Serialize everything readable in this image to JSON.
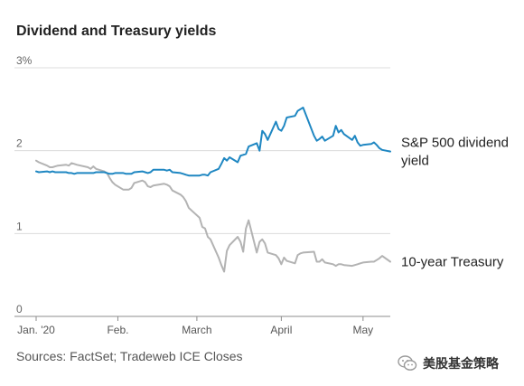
{
  "title": "Dividend and Treasury yields",
  "source": "Sources: FactSet; Tradeweb ICE Closes",
  "watermark": "美股基金策略",
  "chart_data": {
    "type": "line",
    "title": "Dividend and Treasury yields",
    "xlabel": "",
    "ylabel": "",
    "x_tick_labels": [
      "Jan. '20",
      "Feb.",
      "March",
      "April",
      "May"
    ],
    "x_tick_dates": [
      "2020-01-02",
      "2020-02-01",
      "2020-03-01",
      "2020-04-01",
      "2020-05-01"
    ],
    "y_ticks": [
      {
        "value": 0,
        "label": "0"
      },
      {
        "value": 1,
        "label": "1"
      },
      {
        "value": 2,
        "label": "2"
      },
      {
        "value": 3,
        "label": "3%"
      }
    ],
    "ylim": [
      0,
      3
    ],
    "xlim": [
      "2020-01-02",
      "2020-05-11"
    ],
    "grid": "horizontal",
    "series": [
      {
        "name": "S&P 500 dividend yield",
        "color": "#1f87c2",
        "label_lines": [
          "S&P 500 dividend",
          "yield"
        ],
        "points": [
          [
            "2020-01-02",
            1.75
          ],
          [
            "2020-01-03",
            1.74
          ],
          [
            "2020-01-06",
            1.75
          ],
          [
            "2020-01-07",
            1.74
          ],
          [
            "2020-01-08",
            1.75
          ],
          [
            "2020-01-09",
            1.74
          ],
          [
            "2020-01-10",
            1.74
          ],
          [
            "2020-01-13",
            1.74
          ],
          [
            "2020-01-14",
            1.73
          ],
          [
            "2020-01-15",
            1.73
          ],
          [
            "2020-01-16",
            1.72
          ],
          [
            "2020-01-17",
            1.73
          ],
          [
            "2020-01-21",
            1.73
          ],
          [
            "2020-01-22",
            1.73
          ],
          [
            "2020-01-23",
            1.73
          ],
          [
            "2020-01-24",
            1.74
          ],
          [
            "2020-01-27",
            1.74
          ],
          [
            "2020-01-28",
            1.73
          ],
          [
            "2020-01-29",
            1.72
          ],
          [
            "2020-01-30",
            1.72
          ],
          [
            "2020-01-31",
            1.73
          ],
          [
            "2020-02-03",
            1.73
          ],
          [
            "2020-02-04",
            1.72
          ],
          [
            "2020-02-05",
            1.72
          ],
          [
            "2020-02-06",
            1.72
          ],
          [
            "2020-02-07",
            1.74
          ],
          [
            "2020-02-10",
            1.75
          ],
          [
            "2020-02-11",
            1.74
          ],
          [
            "2020-02-12",
            1.73
          ],
          [
            "2020-02-13",
            1.74
          ],
          [
            "2020-02-14",
            1.77
          ],
          [
            "2020-02-18",
            1.77
          ],
          [
            "2020-02-19",
            1.76
          ],
          [
            "2020-02-20",
            1.77
          ],
          [
            "2020-02-21",
            1.74
          ],
          [
            "2020-02-24",
            1.73
          ],
          [
            "2020-02-25",
            1.72
          ],
          [
            "2020-02-26",
            1.71
          ],
          [
            "2020-02-27",
            1.7
          ],
          [
            "2020-02-28",
            1.7
          ],
          [
            "2020-03-02",
            1.7
          ],
          [
            "2020-03-03",
            1.71
          ],
          [
            "2020-03-04",
            1.71
          ],
          [
            "2020-03-05",
            1.7
          ],
          [
            "2020-03-06",
            1.74
          ],
          [
            "2020-03-09",
            1.78
          ],
          [
            "2020-03-10",
            1.84
          ],
          [
            "2020-03-11",
            1.91
          ],
          [
            "2020-03-12",
            1.88
          ],
          [
            "2020-03-13",
            1.92
          ],
          [
            "2020-03-16",
            1.86
          ],
          [
            "2020-03-17",
            1.94
          ],
          [
            "2020-03-18",
            1.95
          ],
          [
            "2020-03-19",
            1.96
          ],
          [
            "2020-03-20",
            2.05
          ],
          [
            "2020-03-23",
            2.09
          ],
          [
            "2020-03-24",
            2.0
          ],
          [
            "2020-03-25",
            2.24
          ],
          [
            "2020-03-26",
            2.2
          ],
          [
            "2020-03-27",
            2.13
          ],
          [
            "2020-03-30",
            2.35
          ],
          [
            "2020-03-31",
            2.26
          ],
          [
            "2020-04-01",
            2.24
          ],
          [
            "2020-04-02",
            2.3
          ],
          [
            "2020-04-03",
            2.4
          ],
          [
            "2020-04-06",
            2.42
          ],
          [
            "2020-04-07",
            2.48
          ],
          [
            "2020-04-08",
            2.5
          ],
          [
            "2020-04-09",
            2.52
          ],
          [
            "2020-04-13",
            2.18
          ],
          [
            "2020-04-14",
            2.12
          ],
          [
            "2020-04-15",
            2.14
          ],
          [
            "2020-04-16",
            2.17
          ],
          [
            "2020-04-17",
            2.12
          ],
          [
            "2020-04-20",
            2.18
          ],
          [
            "2020-04-21",
            2.3
          ],
          [
            "2020-04-22",
            2.22
          ],
          [
            "2020-04-23",
            2.25
          ],
          [
            "2020-04-24",
            2.2
          ],
          [
            "2020-04-27",
            2.13
          ],
          [
            "2020-04-28",
            2.18
          ],
          [
            "2020-04-29",
            2.1
          ],
          [
            "2020-04-30",
            2.06
          ],
          [
            "2020-05-01",
            2.07
          ],
          [
            "2020-05-04",
            2.08
          ],
          [
            "2020-05-05",
            2.1
          ],
          [
            "2020-05-06",
            2.07
          ],
          [
            "2020-05-07",
            2.03
          ],
          [
            "2020-05-08",
            2.01
          ],
          [
            "2020-05-11",
            1.99
          ]
        ]
      },
      {
        "name": "10-year Treasury",
        "color": "#b3b3b3",
        "label_lines": [
          "10-year Treasury"
        ],
        "points": [
          [
            "2020-01-02",
            1.88
          ],
          [
            "2020-01-03",
            1.86
          ],
          [
            "2020-01-06",
            1.82
          ],
          [
            "2020-01-07",
            1.8
          ],
          [
            "2020-01-08",
            1.8
          ],
          [
            "2020-01-09",
            1.81
          ],
          [
            "2020-01-10",
            1.82
          ],
          [
            "2020-01-13",
            1.83
          ],
          [
            "2020-01-14",
            1.82
          ],
          [
            "2020-01-15",
            1.85
          ],
          [
            "2020-01-16",
            1.84
          ],
          [
            "2020-01-17",
            1.83
          ],
          [
            "2020-01-21",
            1.8
          ],
          [
            "2020-01-22",
            1.78
          ],
          [
            "2020-01-23",
            1.81
          ],
          [
            "2020-01-24",
            1.78
          ],
          [
            "2020-01-27",
            1.75
          ],
          [
            "2020-01-28",
            1.73
          ],
          [
            "2020-01-29",
            1.67
          ],
          [
            "2020-01-30",
            1.62
          ],
          [
            "2020-01-31",
            1.59
          ],
          [
            "2020-02-03",
            1.53
          ],
          [
            "2020-02-04",
            1.53
          ],
          [
            "2020-02-05",
            1.53
          ],
          [
            "2020-02-06",
            1.55
          ],
          [
            "2020-02-07",
            1.61
          ],
          [
            "2020-02-10",
            1.64
          ],
          [
            "2020-02-11",
            1.62
          ],
          [
            "2020-02-12",
            1.57
          ],
          [
            "2020-02-13",
            1.56
          ],
          [
            "2020-02-14",
            1.58
          ],
          [
            "2020-02-18",
            1.6
          ],
          [
            "2020-02-19",
            1.59
          ],
          [
            "2020-02-20",
            1.57
          ],
          [
            "2020-02-21",
            1.52
          ],
          [
            "2020-02-24",
            1.47
          ],
          [
            "2020-02-25",
            1.44
          ],
          [
            "2020-02-26",
            1.39
          ],
          [
            "2020-02-27",
            1.31
          ],
          [
            "2020-02-28",
            1.28
          ],
          [
            "2020-03-02",
            1.19
          ],
          [
            "2020-03-03",
            1.08
          ],
          [
            "2020-03-04",
            1.06
          ],
          [
            "2020-03-05",
            0.96
          ],
          [
            "2020-03-06",
            0.93
          ],
          [
            "2020-03-09",
            0.71
          ],
          [
            "2020-03-10",
            0.62
          ],
          [
            "2020-03-11",
            0.54
          ],
          [
            "2020-03-12",
            0.79
          ],
          [
            "2020-03-13",
            0.86
          ],
          [
            "2020-03-16",
            0.96
          ],
          [
            "2020-03-17",
            0.9
          ],
          [
            "2020-03-18",
            0.78
          ],
          [
            "2020-03-19",
            1.06
          ],
          [
            "2020-03-20",
            1.16
          ],
          [
            "2020-03-23",
            0.77
          ],
          [
            "2020-03-24",
            0.9
          ],
          [
            "2020-03-25",
            0.93
          ],
          [
            "2020-03-26",
            0.88
          ],
          [
            "2020-03-27",
            0.77
          ],
          [
            "2020-03-30",
            0.74
          ],
          [
            "2020-03-31",
            0.7
          ],
          [
            "2020-04-01",
            0.63
          ],
          [
            "2020-04-02",
            0.71
          ],
          [
            "2020-04-03",
            0.67
          ],
          [
            "2020-04-06",
            0.64
          ],
          [
            "2020-04-07",
            0.74
          ],
          [
            "2020-04-08",
            0.76
          ],
          [
            "2020-04-09",
            0.77
          ],
          [
            "2020-04-13",
            0.78
          ],
          [
            "2020-04-14",
            0.66
          ],
          [
            "2020-04-15",
            0.66
          ],
          [
            "2020-04-16",
            0.69
          ],
          [
            "2020-04-17",
            0.65
          ],
          [
            "2020-04-20",
            0.63
          ],
          [
            "2020-04-21",
            0.61
          ],
          [
            "2020-04-22",
            0.63
          ],
          [
            "2020-04-23",
            0.63
          ],
          [
            "2020-04-24",
            0.62
          ],
          [
            "2020-04-27",
            0.61
          ],
          [
            "2020-04-28",
            0.62
          ],
          [
            "2020-04-29",
            0.63
          ],
          [
            "2020-04-30",
            0.64
          ],
          [
            "2020-05-01",
            0.65
          ],
          [
            "2020-05-04",
            0.66
          ],
          [
            "2020-05-05",
            0.66
          ],
          [
            "2020-05-06",
            0.68
          ],
          [
            "2020-05-07",
            0.7
          ],
          [
            "2020-05-08",
            0.73
          ],
          [
            "2020-05-11",
            0.66
          ]
        ]
      }
    ]
  }
}
